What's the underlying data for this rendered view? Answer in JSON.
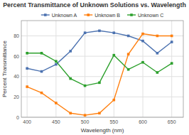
{
  "chart_data": {
    "type": "line",
    "title": "Percent Transmittance of Unknown Solutions vs. Wavelength",
    "x_label": "Wavelength (nm)",
    "y_label": "Percent Transmittance",
    "x": [
      400,
      425,
      450,
      475,
      500,
      525,
      550,
      575,
      600,
      625,
      650
    ],
    "series": [
      {
        "name": "Unknown A",
        "color": "#4c72b0",
        "values": [
          48,
          45,
          52,
          65,
          83,
          85,
          83,
          80,
          75,
          63,
          74
        ]
      },
      {
        "name": "Unknown B",
        "color": "#ff7f0e",
        "values": [
          30,
          24,
          14,
          4,
          2,
          4,
          17,
          62,
          82,
          80,
          80
        ]
      },
      {
        "name": "Unknown C",
        "color": "#2ca02c",
        "values": [
          63,
          63,
          55,
          38,
          31,
          34,
          61,
          47,
          54,
          44,
          53
        ]
      }
    ],
    "xlim": [
      390,
      670
    ],
    "ylim": [
      0,
      95
    ],
    "xticks": [
      400,
      450,
      500,
      550,
      600,
      650
    ],
    "yticks": [
      0,
      20,
      40,
      60,
      80
    ],
    "grid": true,
    "legend": "top",
    "marker": "square"
  }
}
